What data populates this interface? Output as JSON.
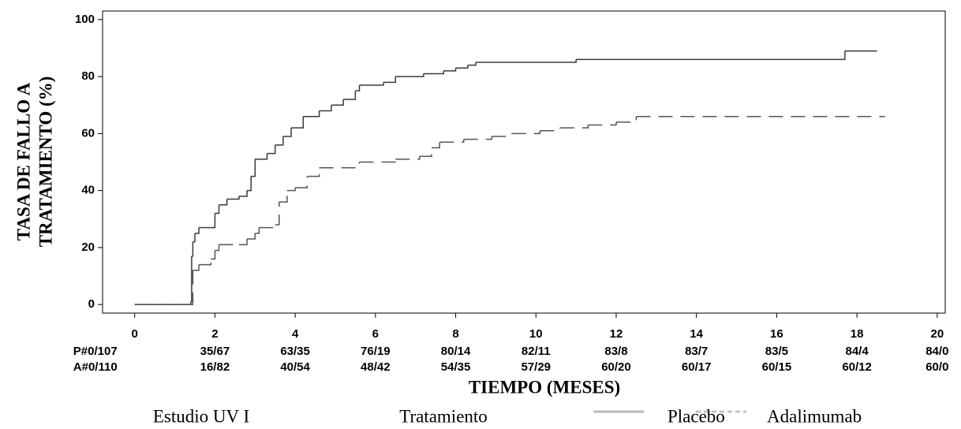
{
  "chart_data": {
    "type": "step",
    "ylabel": [
      "TASA DE FALLO A",
      "TRATAMIENTO (%)"
    ],
    "xlabel": "TIEMPO (MESES)",
    "xlim": [
      -0.8,
      20.2
    ],
    "xticks": [
      0,
      2,
      4,
      6,
      8,
      10,
      12,
      14,
      16,
      18,
      20
    ],
    "ylim": [
      -3,
      103
    ],
    "yticks": [
      0,
      20,
      40,
      60,
      80,
      100
    ],
    "risk_table": [
      [
        "P#0/107",
        "35/67",
        "63/35",
        "76/19",
        "80/14",
        "82/11",
        "83/8",
        "83/7",
        "83/5",
        "84/4",
        "84/0"
      ],
      [
        "A#0/110",
        "16/82",
        "40/54",
        "48/42",
        "54/35",
        "57/29",
        "60/20",
        "60/17",
        "60/15",
        "60/12",
        "60/0"
      ]
    ],
    "footer": [
      "Estudio UV I",
      "Tratamiento"
    ],
    "series": [
      {
        "name": "Placebo",
        "color": "#3a3a3a",
        "dash": false,
        "x": [
          0,
          1.3,
          1.4,
          1.42,
          1.45,
          1.5,
          1.6,
          1.9,
          2,
          2.1,
          2.3,
          2.6,
          2.8,
          2.9,
          3.0,
          3.3,
          3.5,
          3.7,
          3.9,
          4.2,
          4.6,
          4.9,
          5.2,
          5.5,
          5.6,
          6.2,
          6.5,
          7.2,
          7.7,
          8.0,
          8.3,
          8.5,
          11.0,
          17.7,
          18.5
        ],
        "values": [
          0,
          0,
          1,
          17,
          22,
          25,
          27,
          27,
          32,
          35,
          37,
          38,
          40,
          45,
          51,
          53,
          56,
          59,
          62,
          66,
          68,
          70,
          72,
          75,
          77,
          78,
          80,
          81,
          82,
          83,
          84,
          85,
          86,
          89,
          89
        ]
      },
      {
        "name": "Adalimumab",
        "color": "#555555",
        "dash": true,
        "x": [
          0,
          1.4,
          1.45,
          1.6,
          1.9,
          2.0,
          2.1,
          2.6,
          2.8,
          3.0,
          3.1,
          3.5,
          3.6,
          3.8,
          4.0,
          4.3,
          4.6,
          5.6,
          6.5,
          7.1,
          7.4,
          7.6,
          8.2,
          8.9,
          9.4,
          10.1,
          10.6,
          11.3,
          12.0,
          12.5,
          18.7
        ],
        "values": [
          0,
          0,
          12,
          14,
          16,
          19,
          21,
          21,
          23,
          25,
          27,
          28,
          36,
          40,
          41,
          45,
          48,
          50,
          51,
          52,
          55,
          57,
          58,
          59,
          60,
          61,
          62,
          63,
          64,
          66,
          66
        ]
      }
    ]
  }
}
